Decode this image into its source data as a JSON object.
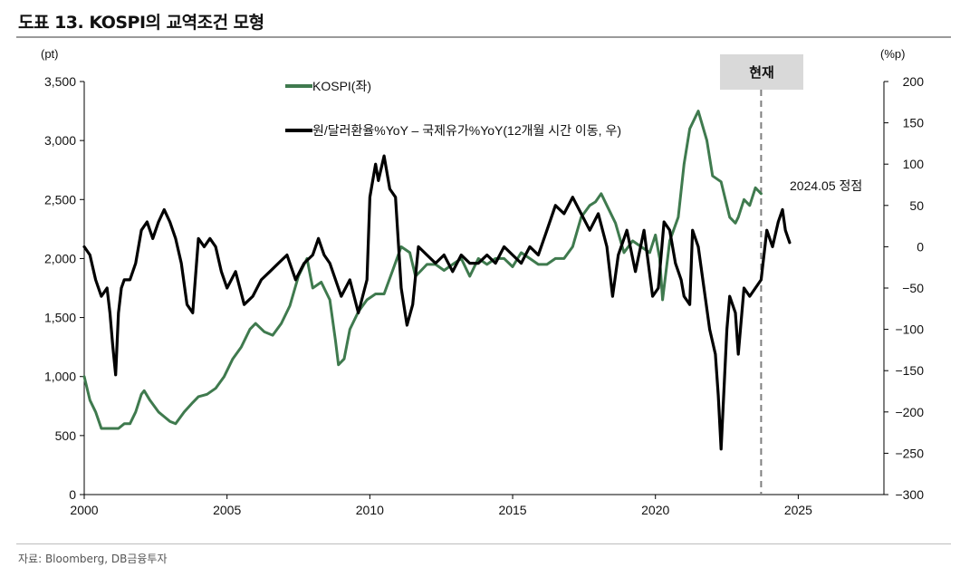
{
  "header": {
    "title": "도표 13. KOSPI의 교역조건 모형"
  },
  "footer": {
    "source": "자료: Bloomberg, DB금융투자"
  },
  "chart_data": {
    "type": "line",
    "title": "도표 13. KOSPI의 교역조건 모형",
    "x_ticks": [
      "2000",
      "2005",
      "2010",
      "2015",
      "2020",
      "2025"
    ],
    "xlim": [
      2000,
      2028
    ],
    "y_left": {
      "unit": "(pt)",
      "range": [
        0,
        3500
      ],
      "ticks": [
        "0",
        "500",
        "1,000",
        "1,500",
        "2,000",
        "2,500",
        "3,000",
        "3,500"
      ]
    },
    "y_right": {
      "unit": "(%p)",
      "range": [
        -300,
        200
      ],
      "ticks": [
        "−300",
        "−250",
        "−200",
        "−150",
        "−100",
        "−50",
        "0",
        "50",
        "100",
        "150",
        "200"
      ]
    },
    "legend": [
      {
        "label": "KOSPI(좌)",
        "color": "#3f7a4e"
      },
      {
        "label": "원/달러환율%YoY – 국제유가%YoY(12개월 시간 이동, 우)",
        "color": "#000000"
      }
    ],
    "annotations": {
      "current_box": "현재",
      "current_x": 2023.7,
      "peak_label": "2024.05 정점"
    },
    "series": [
      {
        "name": "KOSPI(좌)",
        "axis": "left",
        "color": "#3f7a4e",
        "x": [
          2000.0,
          2000.2,
          2000.4,
          2000.6,
          2000.8,
          2001.0,
          2001.2,
          2001.4,
          2001.6,
          2001.8,
          2002.0,
          2002.1,
          2002.3,
          2002.6,
          2002.8,
          2003.0,
          2003.2,
          2003.5,
          2003.8,
          2004.0,
          2004.3,
          2004.6,
          2004.9,
          2005.2,
          2005.5,
          2005.8,
          2006.0,
          2006.3,
          2006.6,
          2006.9,
          2007.2,
          2007.5,
          2007.8,
          2008.0,
          2008.3,
          2008.6,
          2008.8,
          2008.9,
          2009.1,
          2009.3,
          2009.6,
          2009.9,
          2010.2,
          2010.5,
          2010.8,
          2011.1,
          2011.4,
          2011.6,
          2011.8,
          2012.0,
          2012.3,
          2012.6,
          2012.9,
          2013.2,
          2013.5,
          2013.8,
          2014.1,
          2014.4,
          2014.7,
          2015.0,
          2015.3,
          2015.6,
          2015.9,
          2016.2,
          2016.5,
          2016.8,
          2017.1,
          2017.4,
          2017.7,
          2017.9,
          2018.1,
          2018.3,
          2018.6,
          2018.9,
          2019.2,
          2019.5,
          2019.8,
          2020.0,
          2020.15,
          2020.25,
          2020.5,
          2020.8,
          2021.0,
          2021.2,
          2021.5,
          2021.8,
          2022.0,
          2022.3,
          2022.6,
          2022.8,
          2022.9,
          2023.1,
          2023.3,
          2023.5,
          2023.7
        ],
        "values": [
          1000,
          800,
          700,
          560,
          560,
          560,
          560,
          600,
          600,
          700,
          850,
          880,
          800,
          700,
          660,
          620,
          600,
          700,
          780,
          830,
          850,
          900,
          1000,
          1150,
          1250,
          1400,
          1450,
          1380,
          1350,
          1450,
          1600,
          1850,
          2000,
          1750,
          1800,
          1650,
          1300,
          1100,
          1150,
          1400,
          1550,
          1650,
          1700,
          1700,
          1900,
          2100,
          2050,
          1850,
          1900,
          1950,
          1950,
          1900,
          1950,
          2000,
          1850,
          2000,
          1950,
          2000,
          2000,
          1930,
          2050,
          2000,
          1950,
          1950,
          2000,
          2000,
          2100,
          2350,
          2450,
          2480,
          2550,
          2450,
          2300,
          2050,
          2150,
          2100,
          2050,
          2200,
          2000,
          1650,
          2150,
          2350,
          2800,
          3100,
          3250,
          3000,
          2700,
          2650,
          2350,
          2300,
          2350,
          2500,
          2450,
          2600,
          2550
        ]
      },
      {
        "name": "원/달러환율%YoY – 국제유가%YoY(12개월 시간 이동, 우)",
        "axis": "right",
        "color": "#000000",
        "x": [
          2000.0,
          2000.2,
          2000.4,
          2000.6,
          2000.8,
          2000.9,
          2001.0,
          2001.1,
          2001.2,
          2001.3,
          2001.4,
          2001.6,
          2001.8,
          2002.0,
          2002.2,
          2002.4,
          2002.6,
          2002.8,
          2003.0,
          2003.2,
          2003.4,
          2003.6,
          2003.8,
          2004.0,
          2004.2,
          2004.4,
          2004.6,
          2004.8,
          2005.0,
          2005.3,
          2005.6,
          2005.9,
          2006.2,
          2006.5,
          2006.8,
          2007.1,
          2007.4,
          2007.7,
          2008.0,
          2008.2,
          2008.4,
          2008.6,
          2008.8,
          2009.0,
          2009.3,
          2009.6,
          2009.9,
          2010.0,
          2010.2,
          2010.3,
          2010.5,
          2010.7,
          2010.9,
          2011.1,
          2011.3,
          2011.5,
          2011.7,
          2012.0,
          2012.3,
          2012.6,
          2012.9,
          2013.2,
          2013.5,
          2013.8,
          2014.1,
          2014.4,
          2014.7,
          2015.0,
          2015.3,
          2015.6,
          2015.9,
          2016.2,
          2016.5,
          2016.8,
          2017.1,
          2017.4,
          2017.7,
          2018.0,
          2018.3,
          2018.5,
          2018.7,
          2019.0,
          2019.3,
          2019.6,
          2019.9,
          2020.1,
          2020.3,
          2020.5,
          2020.7,
          2020.9,
          2021.0,
          2021.2,
          2021.3,
          2021.5,
          2021.7,
          2021.9,
          2022.1,
          2022.2,
          2022.3,
          2022.5,
          2022.6,
          2022.8,
          2022.9,
          2023.1,
          2023.3,
          2023.5,
          2023.7,
          2023.9,
          2024.1,
          2024.3,
          2024.45,
          2024.55,
          2024.7
        ],
        "values": [
          0,
          -10,
          -40,
          -60,
          -50,
          -80,
          -120,
          -155,
          -80,
          -50,
          -40,
          -40,
          -20,
          20,
          30,
          10,
          30,
          45,
          30,
          10,
          -20,
          -70,
          -80,
          10,
          0,
          10,
          0,
          -30,
          -50,
          -30,
          -70,
          -60,
          -40,
          -30,
          -20,
          -10,
          -40,
          -20,
          -10,
          10,
          -10,
          -20,
          -40,
          -60,
          -40,
          -80,
          -40,
          60,
          100,
          80,
          110,
          70,
          60,
          -50,
          -95,
          -70,
          0,
          -10,
          -20,
          -10,
          -30,
          -10,
          -20,
          -20,
          -10,
          -20,
          0,
          -10,
          -20,
          0,
          -10,
          20,
          50,
          40,
          60,
          40,
          20,
          40,
          0,
          -60,
          -10,
          20,
          -30,
          20,
          -60,
          -50,
          30,
          20,
          -20,
          -40,
          -60,
          -70,
          20,
          0,
          -50,
          -100,
          -130,
          -180,
          -245,
          -100,
          -60,
          -80,
          -130,
          -50,
          -60,
          -50,
          -40,
          20,
          0,
          30,
          45,
          20,
          5
        ]
      }
    ]
  }
}
